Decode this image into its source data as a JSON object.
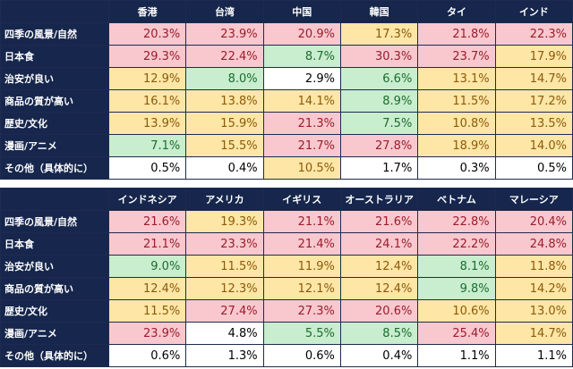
{
  "chart_data": [
    {
      "type": "table",
      "categories": [
        "四季の風景/自然",
        "日本食",
        "治安が良い",
        "商品の質が高い",
        "歴史/文化",
        "漫画/アニメ",
        "その他（具体的に）"
      ],
      "series": [
        {
          "name": "香港",
          "values": [
            "20.3%",
            "29.3%",
            "12.9%",
            "16.1%",
            "13.9%",
            "7.1%",
            "0.5%"
          ],
          "fills": [
            "pink",
            "pink",
            "yellow",
            "yellow",
            "yellow",
            "green",
            "white"
          ]
        },
        {
          "name": "台湾",
          "values": [
            "23.9%",
            "22.4%",
            "8.0%",
            "13.8%",
            "15.9%",
            "15.5%",
            "0.4%"
          ],
          "fills": [
            "pink",
            "pink",
            "green",
            "yellow",
            "yellow",
            "yellow",
            "white"
          ]
        },
        {
          "name": "中国",
          "values": [
            "20.9%",
            "8.7%",
            "2.9%",
            "14.1%",
            "21.3%",
            "21.7%",
            "10.5%"
          ],
          "fills": [
            "pink",
            "green",
            "white",
            "yellow",
            "pink",
            "pink",
            "yellow"
          ]
        },
        {
          "name": "韓国",
          "values": [
            "17.3%",
            "30.3%",
            "6.6%",
            "8.9%",
            "7.5%",
            "27.8%",
            "1.7%"
          ],
          "fills": [
            "yellow",
            "pink",
            "green",
            "green",
            "green",
            "pink",
            "white"
          ]
        },
        {
          "name": "タイ",
          "values": [
            "21.8%",
            "23.7%",
            "13.1%",
            "11.5%",
            "10.8%",
            "18.9%",
            "0.3%"
          ],
          "fills": [
            "pink",
            "pink",
            "yellow",
            "yellow",
            "yellow",
            "yellow",
            "white"
          ]
        },
        {
          "name": "インド",
          "values": [
            "22.3%",
            "17.9%",
            "14.7%",
            "17.2%",
            "13.5%",
            "14.0%",
            "0.5%"
          ],
          "fills": [
            "pink",
            "yellow",
            "yellow",
            "yellow",
            "yellow",
            "yellow",
            "white"
          ]
        }
      ]
    },
    {
      "type": "table",
      "categories": [
        "四季の風景/自然",
        "日本食",
        "治安が良い",
        "商品の質が高い",
        "歴史/文化",
        "漫画/アニメ",
        "その他（具体的に）"
      ],
      "series": [
        {
          "name": "インドネシア",
          "values": [
            "21.6%",
            "21.1%",
            "9.0%",
            "12.4%",
            "11.5%",
            "23.9%",
            "0.6%"
          ],
          "fills": [
            "pink",
            "pink",
            "green",
            "yellow",
            "yellow",
            "pink",
            "white"
          ]
        },
        {
          "name": "アメリカ",
          "values": [
            "19.3%",
            "23.3%",
            "11.5%",
            "12.3%",
            "27.4%",
            "4.8%",
            "1.3%"
          ],
          "fills": [
            "yellow",
            "pink",
            "yellow",
            "yellow",
            "pink",
            "white",
            "white"
          ]
        },
        {
          "name": "イギリス",
          "values": [
            "21.1%",
            "21.4%",
            "11.9%",
            "12.1%",
            "27.3%",
            "5.5%",
            "0.6%"
          ],
          "fills": [
            "pink",
            "pink",
            "yellow",
            "yellow",
            "pink",
            "green",
            "white"
          ]
        },
        {
          "name": "オーストラリア",
          "values": [
            "21.6%",
            "24.1%",
            "12.4%",
            "12.4%",
            "20.6%",
            "8.5%",
            "0.4%"
          ],
          "fills": [
            "pink",
            "pink",
            "yellow",
            "yellow",
            "pink",
            "green",
            "white"
          ]
        },
        {
          "name": "ベトナム",
          "values": [
            "22.8%",
            "22.2%",
            "8.1%",
            "9.8%",
            "10.6%",
            "25.4%",
            "1.1%"
          ],
          "fills": [
            "pink",
            "pink",
            "green",
            "green",
            "yellow",
            "pink",
            "white"
          ]
        },
        {
          "name": "マレーシア",
          "values": [
            "20.4%",
            "24.8%",
            "11.8%",
            "14.2%",
            "13.0%",
            "14.7%",
            "1.1%"
          ],
          "fills": [
            "pink",
            "pink",
            "yellow",
            "yellow",
            "yellow",
            "yellow",
            "white"
          ]
        }
      ]
    }
  ],
  "colors": {
    "header_bg": "#16264c",
    "pink": "#f9c8cf",
    "yellow": "#fde6a6",
    "green": "#c8edcf",
    "white": "#ffffff"
  }
}
